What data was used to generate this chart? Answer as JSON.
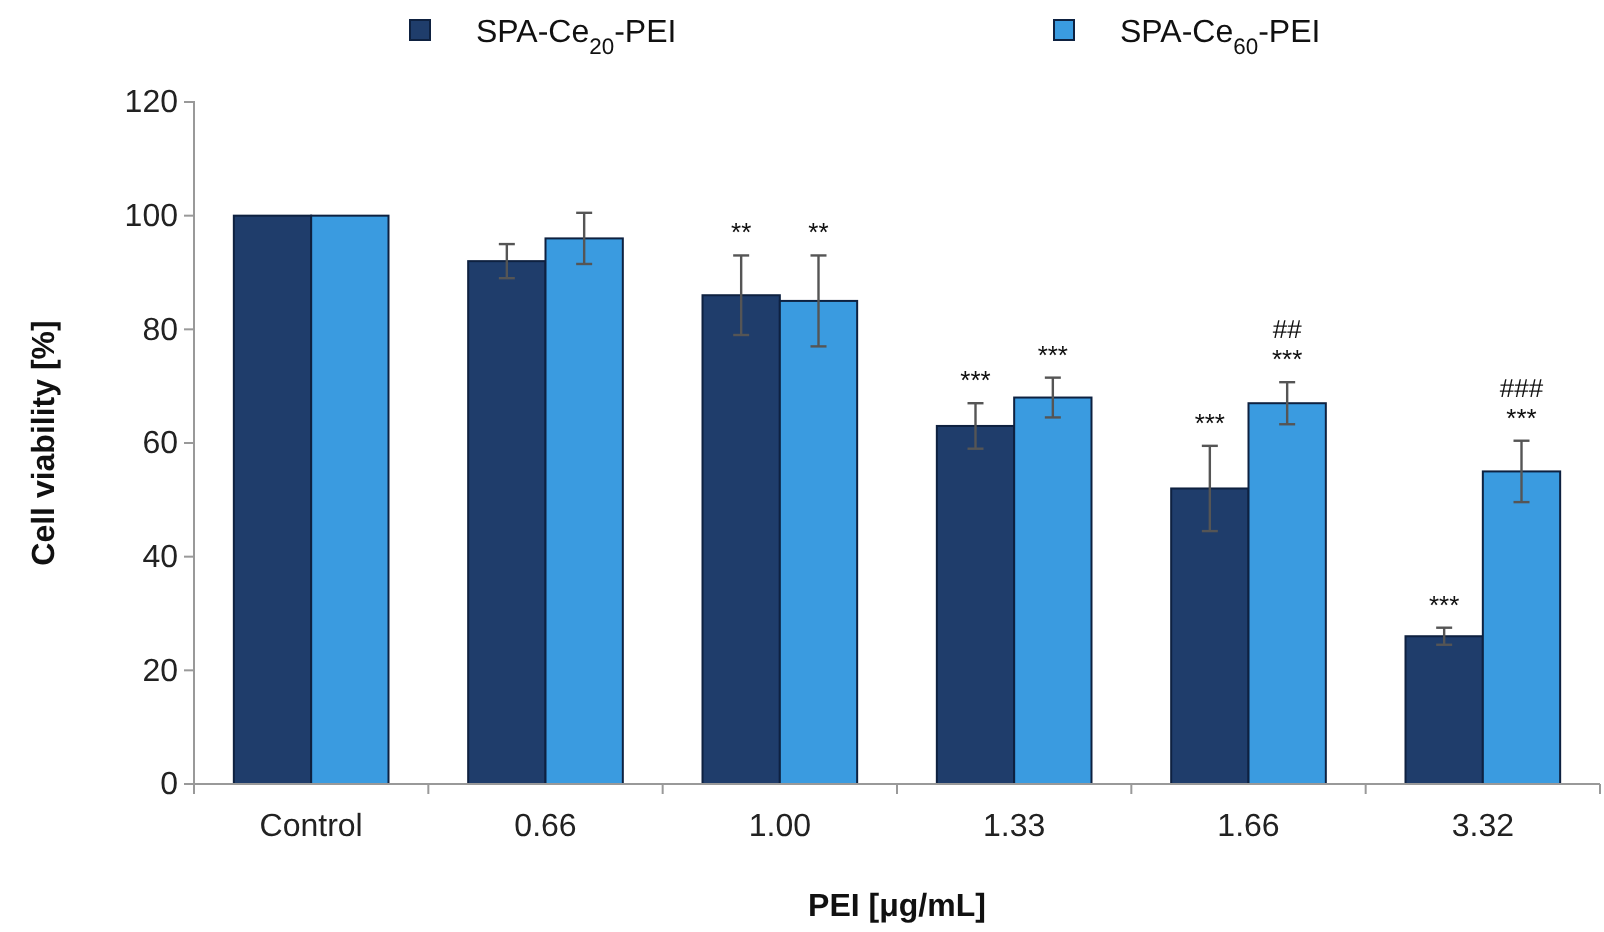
{
  "chart_data": {
    "type": "bar",
    "xlabel": "PEI [μg/mL]",
    "ylabel": "Cell viability [%]",
    "categories": [
      "Control",
      "0.66",
      "1.00",
      "1.33",
      "1.66",
      "3.32"
    ],
    "series": [
      {
        "name": "SPA-Ce$_{20}$-PEI",
        "color": "#1f3d6b",
        "values": [
          100,
          92,
          86,
          63,
          52,
          26
        ],
        "errors": [
          null,
          3,
          7,
          4,
          7.5,
          1.5
        ],
        "value_labels": [
          null,
          null,
          "**",
          "***",
          "***",
          "***"
        ]
      },
      {
        "name": "SPA-Ce$_{60}$-PEI",
        "color": "#3a9be0",
        "values": [
          100,
          96,
          85,
          68,
          67,
          55
        ],
        "errors": [
          null,
          4.5,
          8,
          3.5,
          3.7,
          5.4
        ],
        "value_labels": [
          null,
          null,
          "**",
          "***",
          "##\n***",
          "###\n***"
        ]
      }
    ],
    "ylim": [
      0,
      120
    ],
    "yticks": [
      0,
      20,
      40,
      60,
      80,
      100,
      120
    ],
    "grid": false,
    "legend": "top"
  }
}
